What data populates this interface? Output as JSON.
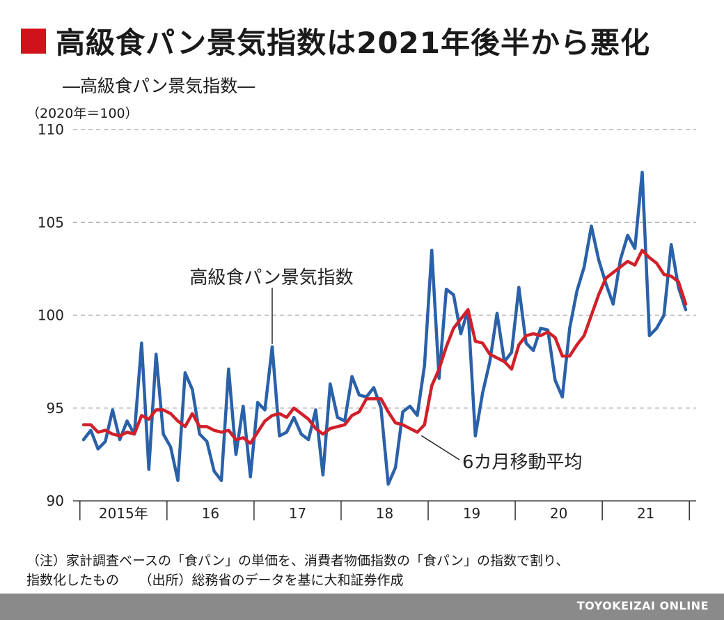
{
  "header": {
    "title": "高級食パン景気指数は2021年後半から悪化",
    "subtitle": "―高級食パン景気指数―",
    "unit": "（2020年＝100）"
  },
  "notes": {
    "line1": "（注）家計調査ベースの「食パン」の単価を、消費者物価指数の「食パン」の指数で割り、",
    "line2": "指数化したもの　　（出所）総務省のデータを基に大和証券作成"
  },
  "footer": {
    "credit": "TOYOKEIZAI ONLINE"
  },
  "chart_data": {
    "type": "line",
    "ylim": [
      90,
      110
    ],
    "yticks": [
      90,
      95,
      100,
      105,
      110
    ],
    "xlim": [
      0,
      83
    ],
    "year_labels": [
      "2015年",
      "16",
      "17",
      "18",
      "19",
      "20",
      "21"
    ],
    "grid": true,
    "series": [
      {
        "name": "高級食パン景気指数",
        "color": "#2a61a8",
        "values": [
          93.3,
          93.8,
          92.8,
          93.2,
          94.9,
          93.3,
          94.3,
          93.6,
          98.5,
          91.7,
          97.9,
          93.6,
          92.9,
          91.1,
          96.9,
          96.0,
          93.6,
          93.2,
          91.6,
          91.1,
          97.1,
          92.5,
          95.1,
          91.3,
          95.3,
          94.9,
          98.3,
          93.5,
          93.7,
          94.5,
          93.6,
          93.3,
          94.9,
          91.4,
          96.3,
          94.5,
          94.3,
          96.7,
          95.7,
          95.6,
          96.1,
          95.0,
          90.9,
          91.8,
          94.8,
          95.1,
          94.6,
          97.3,
          103.5,
          96.6,
          101.4,
          101.1,
          99.0,
          100.3,
          93.5,
          95.8,
          97.5,
          100.1,
          97.5,
          98.0,
          101.5,
          98.5,
          98.1,
          99.3,
          99.2,
          96.5,
          95.6,
          99.3,
          101.3,
          102.6,
          104.8,
          103.0,
          101.7,
          100.6,
          103.0,
          104.3,
          103.6,
          107.7,
          98.9,
          99.3,
          100.0,
          103.8,
          101.5,
          100.3
        ],
        "label": "高級食パン景気指数"
      },
      {
        "name": "6カ月移動平均",
        "color": "#d0202a",
        "values": [
          94.1,
          94.1,
          93.7,
          93.8,
          93.6,
          93.5,
          93.7,
          93.6,
          94.6,
          94.4,
          94.9,
          94.9,
          94.7,
          94.3,
          94.0,
          94.7,
          94.0,
          94.0,
          93.8,
          93.7,
          93.8,
          93.3,
          93.4,
          93.1,
          93.7,
          94.3,
          94.6,
          94.7,
          94.5,
          95.0,
          94.7,
          94.4,
          93.9,
          93.6,
          93.9,
          94.0,
          94.1,
          94.6,
          94.8,
          95.5,
          95.5,
          95.5,
          94.8,
          94.2,
          94.1,
          93.9,
          93.7,
          94.1,
          96.2,
          97.1,
          98.3,
          99.3,
          99.8,
          100.3,
          98.6,
          98.5,
          97.9,
          97.7,
          97.5,
          97.1,
          98.4,
          98.9,
          99.0,
          98.9,
          99.1,
          98.8,
          97.8,
          97.8,
          98.4,
          98.9,
          100.0,
          101.1,
          102.0,
          102.3,
          102.6,
          102.9,
          102.7,
          103.5,
          103.1,
          102.8,
          102.2,
          102.1,
          101.8,
          100.6
        ],
        "label": "6カ月移動平均"
      }
    ]
  }
}
